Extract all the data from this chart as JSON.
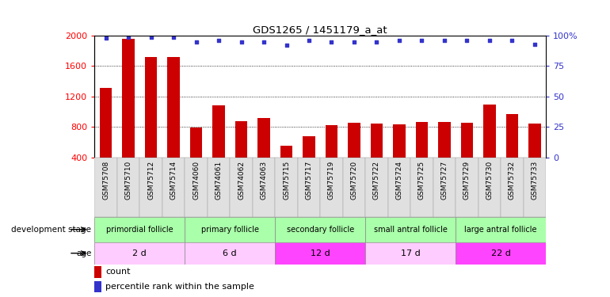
{
  "title": "GDS1265 / 1451179_a_at",
  "samples": [
    "GSM75708",
    "GSM75710",
    "GSM75712",
    "GSM75714",
    "GSM74060",
    "GSM74061",
    "GSM74062",
    "GSM74063",
    "GSM75715",
    "GSM75717",
    "GSM75719",
    "GSM75720",
    "GSM75722",
    "GSM75724",
    "GSM75725",
    "GSM75727",
    "GSM75729",
    "GSM75730",
    "GSM75732",
    "GSM75733"
  ],
  "counts": [
    1310,
    1960,
    1720,
    1720,
    790,
    1080,
    880,
    920,
    550,
    680,
    820,
    860,
    840,
    830,
    870,
    870,
    860,
    1090,
    970,
    840
  ],
  "percentiles": [
    98,
    99,
    99,
    99,
    95,
    96,
    95,
    95,
    92,
    96,
    95,
    95,
    95,
    96,
    96,
    96,
    96,
    96,
    96,
    93
  ],
  "bar_color": "#cc0000",
  "dot_color": "#3333cc",
  "ylim_left": [
    400,
    2000
  ],
  "ylim_right": [
    0,
    100
  ],
  "yticks_left": [
    400,
    800,
    1200,
    1600,
    2000
  ],
  "yticks_right": [
    0,
    25,
    50,
    75,
    100
  ],
  "groups": [
    {
      "label": "primordial follicle",
      "start": 0,
      "end": 4
    },
    {
      "label": "primary follicle",
      "start": 4,
      "end": 8
    },
    {
      "label": "secondary follicle",
      "start": 8,
      "end": 12
    },
    {
      "label": "small antral follicle",
      "start": 12,
      "end": 16
    },
    {
      "label": "large antral follicle",
      "start": 16,
      "end": 20
    }
  ],
  "group_color": "#aaffaa",
  "ages": [
    {
      "label": "2 d",
      "start": 0,
      "end": 4
    },
    {
      "label": "6 d",
      "start": 4,
      "end": 8
    },
    {
      "label": "12 d",
      "start": 8,
      "end": 12
    },
    {
      "label": "17 d",
      "start": 12,
      "end": 16
    },
    {
      "label": "22 d",
      "start": 16,
      "end": 20
    }
  ],
  "age_colors": [
    "#ffccff",
    "#ffccff",
    "#ff44ff",
    "#ffccff",
    "#ff44ff"
  ],
  "dev_stage_label": "development stage",
  "age_label": "age",
  "legend_count_label": "count",
  "legend_pct_label": "percentile rank within the sample"
}
